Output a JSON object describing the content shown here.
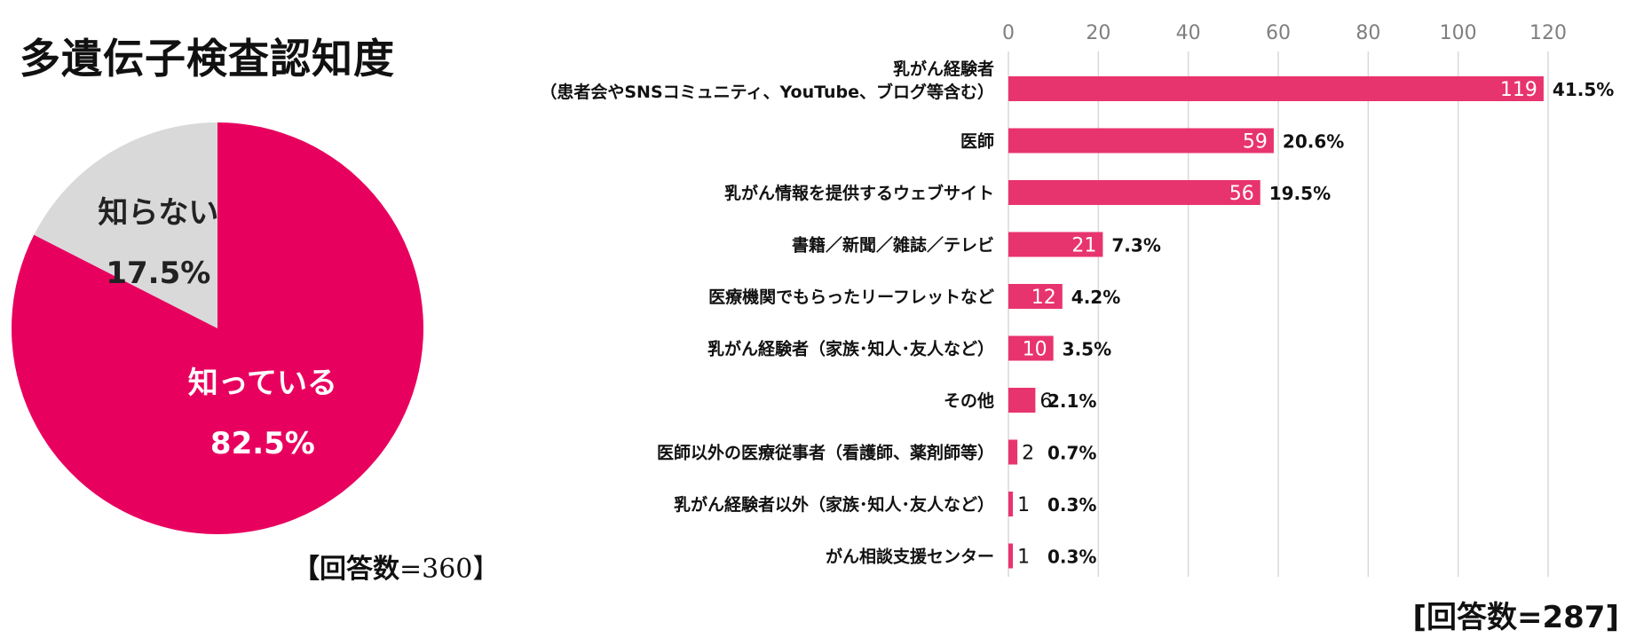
{
  "pie": {
    "title": "多遺伝子検査認知度",
    "slices": [
      {
        "label": "知っている",
        "pct_label": "82.5%",
        "value": 82.5,
        "color": "#E8005F",
        "text_color": "#ffffff"
      },
      {
        "label": "知らない",
        "pct_label": "17.5%",
        "value": 17.5,
        "color": "#D9D9D9",
        "text_color": "#222222"
      }
    ],
    "count": {
      "label": "【回答数",
      "num": "=360】"
    }
  },
  "bar": {
    "count_label": "[回答数=287]",
    "color": "#E8346E"
  },
  "chart_data": [
    {
      "type": "pie",
      "title": "多遺伝子検査認知度",
      "categories": [
        "知っている",
        "知らない"
      ],
      "values": [
        82.5,
        17.5
      ]
    },
    {
      "type": "bar",
      "orientation": "horizontal",
      "categories": [
        [
          "乳がん経験者",
          "（患者会やSNSコミュニティ、YouTube、ブログ等含む）"
        ],
        [
          "医師"
        ],
        [
          "乳がん情報を提供するウェブサイト"
        ],
        [
          "書籍／新聞／雑誌／テレビ"
        ],
        [
          "医療機関でもらったリーフレットなど"
        ],
        [
          "乳がん経験者（家族･知人･友人など）"
        ],
        [
          "その他"
        ],
        [
          "医師以外の医療従事者（看護師、薬剤師等）"
        ],
        [
          "乳がん経験者以外（家族･知人･友人など）"
        ],
        [
          "がん相談支援センター"
        ]
      ],
      "values": [
        119,
        59,
        56,
        21,
        12,
        10,
        6,
        2,
        1,
        1
      ],
      "percent_labels": [
        "41.5%",
        "20.6%",
        "19.5%",
        "7.3%",
        "4.2%",
        "3.5%",
        "2.1%",
        "0.7%",
        "0.3%",
        "0.3%"
      ],
      "xlim": [
        0,
        120
      ],
      "xticks": [
        0,
        20,
        40,
        60,
        80,
        100,
        120
      ],
      "grid": true
    }
  ]
}
